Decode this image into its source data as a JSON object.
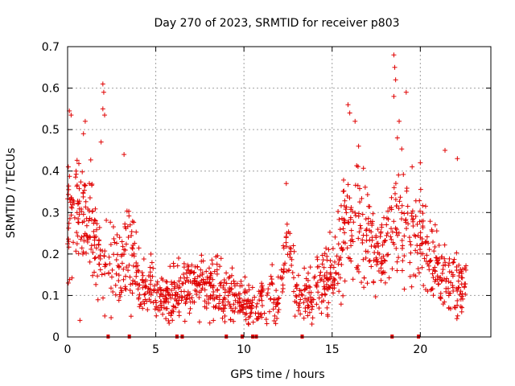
{
  "chart_data": {
    "type": "scatter",
    "title": "Day 270 of 2023, SRMTID for receiver p803",
    "xlabel": "GPS time / hours",
    "ylabel": "SRMTID / TECUs",
    "xlim": [
      0,
      24
    ],
    "ylim": [
      0,
      0.7
    ],
    "x_ticks": [
      0,
      5,
      10,
      15,
      20
    ],
    "x_tick_labels": [
      "0",
      "5",
      "10",
      "15",
      "20"
    ],
    "y_ticks": [
      0,
      0.1,
      0.2,
      0.3,
      0.4,
      0.5,
      0.6,
      0.7
    ],
    "y_tick_labels": [
      "0",
      "0.1",
      "0.2",
      "0.3",
      "0.4",
      "0.5",
      "0.6",
      "0.7"
    ],
    "grid": true,
    "marker": "+",
    "series_color": "#e00000",
    "envelope_hours": [
      0,
      0.5,
      1,
      1.5,
      2,
      2.5,
      3,
      3.5,
      4,
      4.5,
      5,
      6,
      7,
      8,
      9,
      10,
      11,
      12,
      12.5,
      13,
      14,
      15,
      15.5,
      16,
      17,
      18,
      18.5,
      19,
      20,
      21,
      22,
      22.6
    ],
    "envelope_median": [
      0.28,
      0.3,
      0.3,
      0.25,
      0.16,
      0.2,
      0.16,
      0.22,
      0.13,
      0.12,
      0.1,
      0.1,
      0.12,
      0.12,
      0.11,
      0.07,
      0.09,
      0.1,
      0.26,
      0.1,
      0.11,
      0.15,
      0.22,
      0.28,
      0.24,
      0.2,
      0.26,
      0.28,
      0.24,
      0.16,
      0.12,
      0.13
    ],
    "envelope_spread": [
      0.1,
      0.09,
      0.09,
      0.08,
      0.07,
      0.1,
      0.06,
      0.08,
      0.05,
      0.05,
      0.04,
      0.05,
      0.05,
      0.05,
      0.05,
      0.04,
      0.05,
      0.05,
      0.07,
      0.05,
      0.05,
      0.07,
      0.1,
      0.1,
      0.08,
      0.07,
      0.11,
      0.1,
      0.08,
      0.06,
      0.06,
      0.05
    ],
    "outliers": [
      {
        "x": 0.1,
        "y": 0.545
      },
      {
        "x": 0.2,
        "y": 0.535
      },
      {
        "x": 1.0,
        "y": 0.52
      },
      {
        "x": 0.9,
        "y": 0.49
      },
      {
        "x": 2.0,
        "y": 0.61
      },
      {
        "x": 2.05,
        "y": 0.59
      },
      {
        "x": 2.0,
        "y": 0.55
      },
      {
        "x": 2.1,
        "y": 0.535
      },
      {
        "x": 1.9,
        "y": 0.47
      },
      {
        "x": 3.2,
        "y": 0.44
      },
      {
        "x": 12.4,
        "y": 0.37
      },
      {
        "x": 15.9,
        "y": 0.56
      },
      {
        "x": 16.0,
        "y": 0.54
      },
      {
        "x": 16.3,
        "y": 0.52
      },
      {
        "x": 16.5,
        "y": 0.46
      },
      {
        "x": 18.5,
        "y": 0.68
      },
      {
        "x": 18.55,
        "y": 0.65
      },
      {
        "x": 18.6,
        "y": 0.62
      },
      {
        "x": 18.5,
        "y": 0.58
      },
      {
        "x": 18.8,
        "y": 0.52
      },
      {
        "x": 18.7,
        "y": 0.48
      },
      {
        "x": 19.2,
        "y": 0.59
      },
      {
        "x": 21.4,
        "y": 0.45
      },
      {
        "x": 22.1,
        "y": 0.43
      },
      {
        "x": 20.0,
        "y": 0.42
      },
      {
        "x": 3.6,
        "y": 0.05
      },
      {
        "x": 0.7,
        "y": 0.04
      }
    ],
    "data_gap_markers_hours": [
      2.3,
      3.5,
      6.2,
      6.5,
      9.0,
      9.9,
      10.5,
      10.7,
      13.3,
      18.4,
      19.9
    ]
  }
}
